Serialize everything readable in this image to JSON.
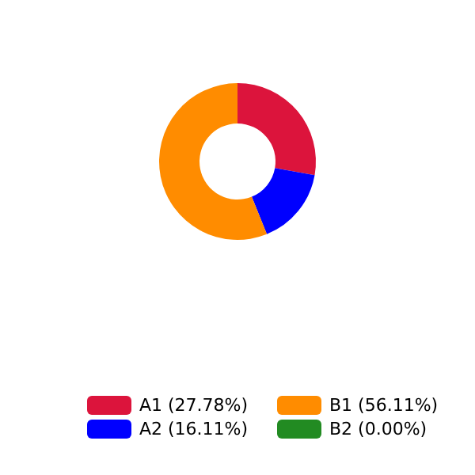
{
  "chart_data": {
    "type": "donut",
    "categories": [
      "A1 (27.78%)",
      "A2 (16.11%)",
      "B1 (56.11%)",
      "B2 (0.00%)"
    ],
    "values": [
      27.78,
      16.11,
      56.11,
      0.0
    ],
    "colors": [
      "#dc143c",
      "#0000ff",
      "#ff8c00",
      "#228b22"
    ],
    "legend": "bottom"
  }
}
